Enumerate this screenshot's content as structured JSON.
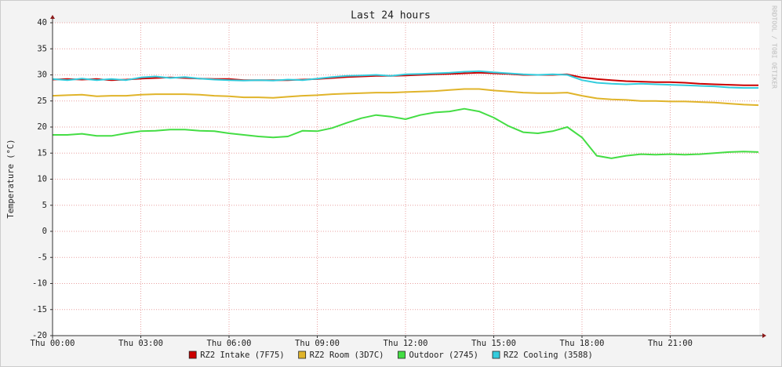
{
  "chart_data": {
    "type": "line",
    "title": "Last 24 hours",
    "y_label": "Temperature (°C)",
    "watermark": "RRDTOOL / TOBI OETIKER",
    "x": [
      0,
      0.5,
      1,
      1.5,
      2,
      2.5,
      3,
      3.5,
      4,
      4.5,
      5,
      5.5,
      6,
      6.5,
      7,
      7.5,
      8,
      8.5,
      9,
      9.5,
      10,
      10.5,
      11,
      11.5,
      12,
      12.5,
      13,
      13.5,
      14,
      14.5,
      15,
      15.5,
      16,
      16.5,
      17,
      17.5,
      18,
      18.5,
      19,
      19.5,
      20,
      20.5,
      21,
      21.5,
      22,
      22.5,
      23,
      23.5,
      24
    ],
    "xlim": [
      0,
      24
    ],
    "xticks": [
      {
        "value": 0,
        "label": "Thu 00:00"
      },
      {
        "value": 3,
        "label": "Thu 03:00"
      },
      {
        "value": 6,
        "label": "Thu 06:00"
      },
      {
        "value": 9,
        "label": "Thu 09:00"
      },
      {
        "value": 12,
        "label": "Thu 12:00"
      },
      {
        "value": 15,
        "label": "Thu 15:00"
      },
      {
        "value": 18,
        "label": "Thu 18:00"
      },
      {
        "value": 21,
        "label": "Thu 21:00"
      }
    ],
    "ylim": [
      -20,
      40
    ],
    "yticks": [
      -20,
      -15,
      -10,
      -5,
      0,
      5,
      10,
      15,
      20,
      25,
      30,
      35,
      40
    ],
    "grid": true,
    "series": [
      {
        "name": "RZ2 Intake (7F75)",
        "color": "#cc0000",
        "values": [
          29.1,
          29.2,
          29.1,
          29.2,
          29.0,
          29.1,
          29.3,
          29.4,
          29.5,
          29.4,
          29.3,
          29.2,
          29.2,
          29.0,
          29.0,
          29.0,
          29.0,
          29.1,
          29.2,
          29.4,
          29.6,
          29.7,
          29.8,
          29.8,
          29.9,
          30.0,
          30.1,
          30.2,
          30.3,
          30.4,
          30.3,
          30.2,
          30.0,
          30.0,
          30.0,
          30.1,
          29.5,
          29.2,
          29.0,
          28.8,
          28.7,
          28.6,
          28.6,
          28.5,
          28.3,
          28.2,
          28.1,
          28.0,
          28.0
        ]
      },
      {
        "name": "RZ2 Room (3D7C)",
        "color": "#e0b42a",
        "values": [
          26.0,
          26.1,
          26.2,
          25.9,
          26.0,
          26.0,
          26.2,
          26.3,
          26.3,
          26.3,
          26.2,
          26.0,
          25.9,
          25.7,
          25.7,
          25.6,
          25.8,
          26.0,
          26.1,
          26.3,
          26.4,
          26.5,
          26.6,
          26.6,
          26.7,
          26.8,
          26.9,
          27.1,
          27.3,
          27.3,
          27.0,
          26.8,
          26.6,
          26.5,
          26.5,
          26.6,
          26.0,
          25.5,
          25.3,
          25.2,
          25.0,
          25.0,
          24.9,
          24.9,
          24.8,
          24.7,
          24.5,
          24.3,
          24.2
        ]
      },
      {
        "name": "Outdoor (2745)",
        "color": "#44dd44",
        "values": [
          18.5,
          18.5,
          18.7,
          18.3,
          18.3,
          18.8,
          19.2,
          19.3,
          19.5,
          19.5,
          19.3,
          19.2,
          18.8,
          18.5,
          18.2,
          18.0,
          18.2,
          19.3,
          19.2,
          19.8,
          20.8,
          21.7,
          22.3,
          22.0,
          21.5,
          22.3,
          22.8,
          23.0,
          23.5,
          23.0,
          21.8,
          20.2,
          19.0,
          18.8,
          19.2,
          20.0,
          18.0,
          14.5,
          14.0,
          14.5,
          14.8,
          14.7,
          14.8,
          14.7,
          14.8,
          15.0,
          15.2,
          15.3,
          15.2
        ]
      },
      {
        "name": "RZ2 Cooling (3588)",
        "color": "#33ccdd",
        "values": [
          29.2,
          29.0,
          29.3,
          29.0,
          29.2,
          29.0,
          29.5,
          29.7,
          29.4,
          29.6,
          29.3,
          29.1,
          29.0,
          28.9,
          29.0,
          28.9,
          29.1,
          29.0,
          29.3,
          29.6,
          29.8,
          29.9,
          30.0,
          29.8,
          30.1,
          30.2,
          30.3,
          30.4,
          30.6,
          30.7,
          30.5,
          30.3,
          30.1,
          30.0,
          30.1,
          30.0,
          29.0,
          28.5,
          28.3,
          28.2,
          28.3,
          28.2,
          28.1,
          28.0,
          27.9,
          27.8,
          27.6,
          27.5,
          27.5
        ]
      }
    ]
  }
}
